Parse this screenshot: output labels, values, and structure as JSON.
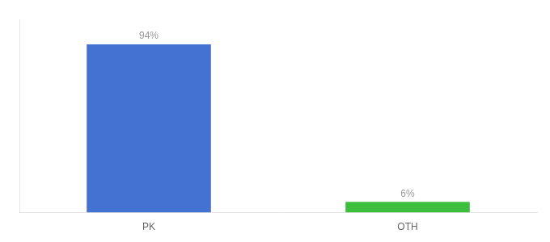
{
  "chart_data": {
    "type": "bar",
    "categories": [
      "PK",
      "OTH"
    ],
    "values": [
      94,
      6
    ],
    "value_labels": [
      "94%",
      "6%"
    ],
    "colors": [
      "#4472d3",
      "#3dbf3d"
    ],
    "ylim": [
      0,
      108
    ],
    "data_labels": true,
    "grid": false,
    "tick_labels": "x"
  }
}
